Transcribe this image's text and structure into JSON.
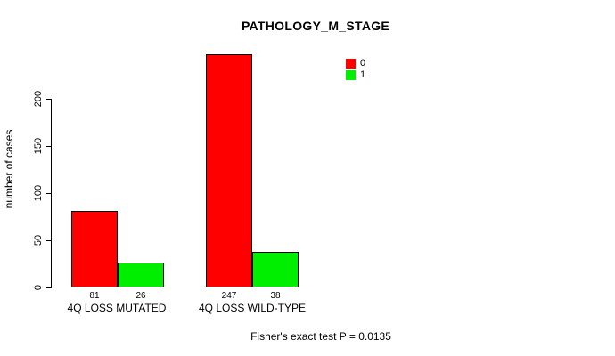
{
  "chart_data": {
    "type": "bar",
    "title": "PATHOLOGY_M_STAGE",
    "xlabel": "",
    "ylabel": "number of cases",
    "categories": [
      "4Q LOSS MUTATED",
      "4Q LOSS WILD-TYPE"
    ],
    "series": [
      {
        "name": "0",
        "color": "#ff0000",
        "values": [
          81,
          247
        ]
      },
      {
        "name": "1",
        "color": "#00ee00",
        "values": [
          26,
          38
        ]
      }
    ],
    "yticks": [
      0,
      50,
      100,
      150,
      200
    ],
    "ylim": [
      0,
      250
    ],
    "grid": false,
    "legend_position": "top-right",
    "annotation": "Fisher's exact test P = 0.0135"
  },
  "colors": {
    "background": "#ffffff",
    "axis": "#000000",
    "text": "#000000",
    "series0": "#ff0000",
    "series1": "#00ee00"
  }
}
